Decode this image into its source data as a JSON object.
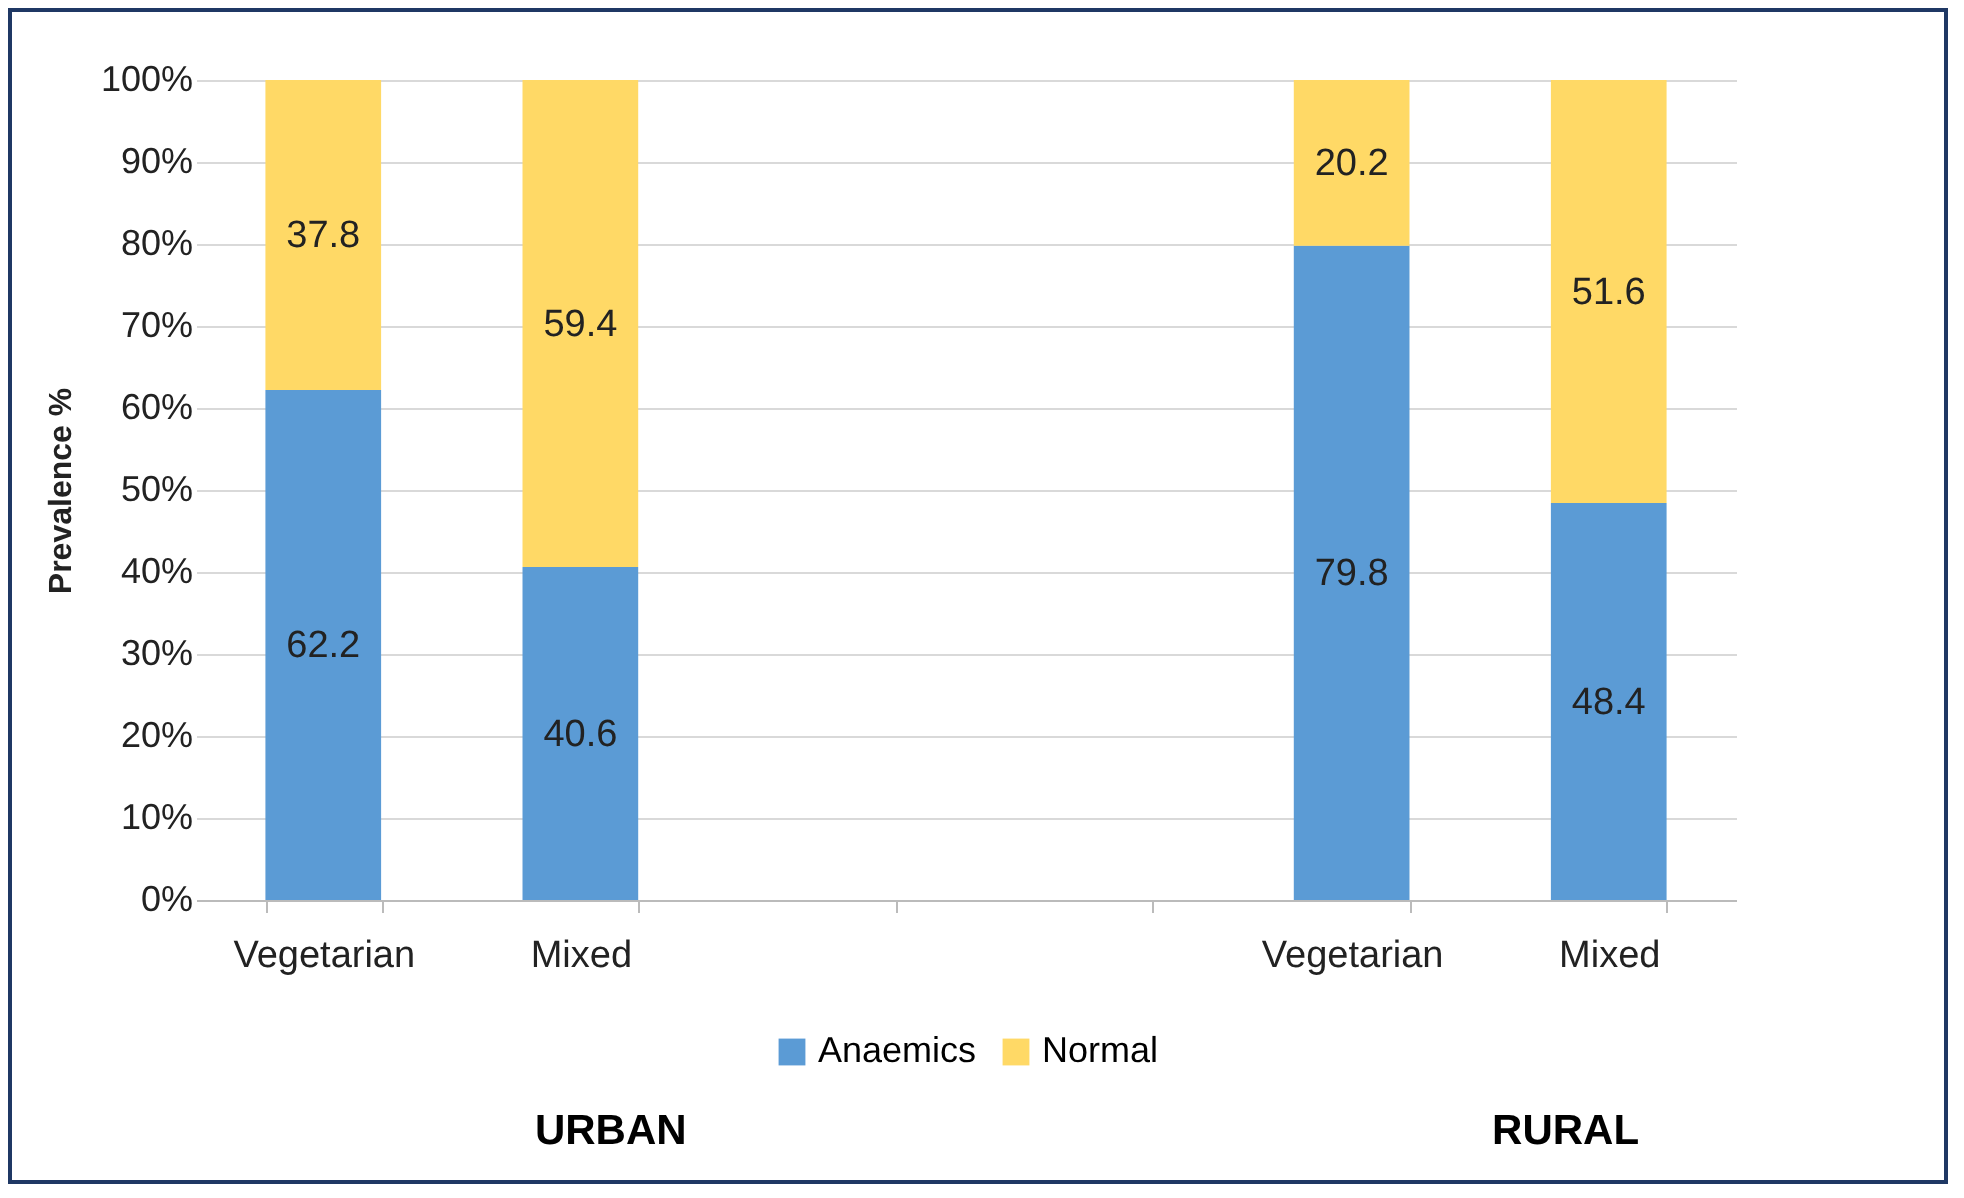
{
  "chart_data": {
    "type": "bar",
    "stacked": true,
    "ylabel": "Prevalence %",
    "categories": [
      "Vegetarian",
      "Mixed",
      null,
      null,
      "Vegetarian",
      "Mixed"
    ],
    "series": [
      {
        "name": "Anaemics",
        "color": "#5b9bd5",
        "values": [
          62.2,
          40.6,
          null,
          null,
          79.8,
          48.4
        ]
      },
      {
        "name": "Normal",
        "color": "#ffd966",
        "values": [
          37.8,
          59.4,
          null,
          null,
          20.2,
          51.6
        ]
      }
    ],
    "ylim": [
      0,
      100
    ],
    "yticks": [
      {
        "value": 0,
        "label": "0%"
      },
      {
        "value": 10,
        "label": "10%"
      },
      {
        "value": 20,
        "label": "20%"
      },
      {
        "value": 30,
        "label": "30%"
      },
      {
        "value": 40,
        "label": "40%"
      },
      {
        "value": 50,
        "label": "50%"
      },
      {
        "value": 60,
        "label": "60%"
      },
      {
        "value": 70,
        "label": "70%"
      },
      {
        "value": 80,
        "label": "80%"
      },
      {
        "value": 90,
        "label": "90%"
      },
      {
        "value": 100,
        "label": "100%"
      }
    ],
    "grid": "y",
    "legend": "bottom",
    "data_labels": true,
    "annotations": [
      "URBAN",
      "RURAL"
    ]
  }
}
